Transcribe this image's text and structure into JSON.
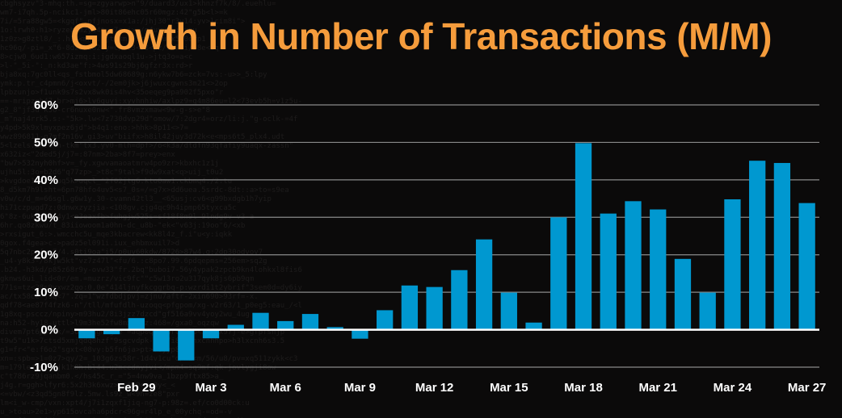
{
  "chart_data": {
    "type": "bar",
    "title": "Growth in Number of Transactions (M/M)",
    "xlabel": "",
    "ylabel": "",
    "ylim": [
      -10,
      60
    ],
    "ytick_values": [
      -10,
      0,
      10,
      20,
      30,
      40,
      50,
      60
    ],
    "ytick_labels": [
      "-10%",
      "0%",
      "10%",
      "20%",
      "30%",
      "40%",
      "50%",
      "60%"
    ],
    "x_tick_labels": [
      "Feb 29",
      "Mar 3",
      "Mar 6",
      "Mar 9",
      "Mar 12",
      "Mar 15",
      "Mar 18",
      "Mar 21",
      "Mar 24",
      "Mar 27"
    ],
    "values": [
      -2.3,
      -1.2,
      3.1,
      -5.8,
      -8.2,
      -2.3,
      1.3,
      4.5,
      2.3,
      4.2,
      0.7,
      -2.4,
      5.2,
      11.8,
      11.4,
      15.9,
      24.1,
      9.9,
      1.9,
      30.0,
      49.8,
      31.0,
      34.3,
      32.1,
      18.9,
      9.9,
      34.8,
      45.1,
      44.5,
      33.8
    ],
    "grid": true,
    "bar_color": "#0098d0",
    "title_color": "#f59c3c",
    "background_color": "#0b0a0a"
  }
}
